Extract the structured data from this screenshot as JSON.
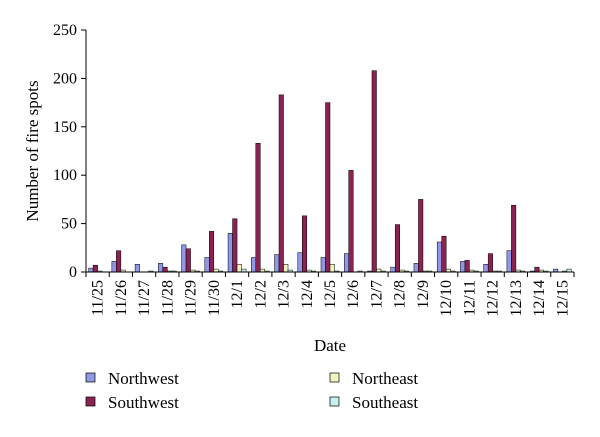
{
  "chart_data": {
    "type": "bar",
    "xlabel": "Date",
    "ylabel": "Number of fire spots",
    "ylim": [
      0,
      250
    ],
    "yticks": [
      "0",
      "50",
      "100",
      "150",
      "200",
      "250"
    ],
    "grid": false,
    "legend_position": "bottom",
    "categories": [
      "11/25",
      "11/26",
      "11/27",
      "11/28",
      "11/29",
      "11/30",
      "12/1",
      "12/2",
      "12/3",
      "12/4",
      "12/5",
      "12/6",
      "12/7",
      "12/8",
      "12/9",
      "12/10",
      "12/11",
      "12/12",
      "12/13",
      "12/14",
      "12/15"
    ],
    "series": [
      {
        "name": "Northwest",
        "color": "#8f97e6",
        "values": [
          4,
          11,
          8,
          9,
          28,
          15,
          40,
          15,
          18,
          20,
          15,
          19,
          1,
          5,
          9,
          31,
          11,
          8,
          22,
          1,
          3
        ]
      },
      {
        "name": "Southwest",
        "color": "#8b2252",
        "values": [
          7,
          22,
          0,
          5,
          24,
          42,
          55,
          133,
          183,
          58,
          175,
          105,
          208,
          49,
          75,
          37,
          12,
          19,
          69,
          5,
          0
        ]
      },
      {
        "name": "Northeast",
        "color": "#f2f2c0",
        "values": [
          1,
          2,
          0,
          1,
          2,
          3,
          8,
          3,
          8,
          2,
          8,
          0,
          3,
          2,
          1,
          3,
          2,
          1,
          2,
          2,
          1
        ]
      },
      {
        "name": "Southeast",
        "color": "#c9f1f1",
        "values": [
          0,
          0,
          1,
          1,
          1,
          1,
          3,
          1,
          2,
          1,
          1,
          1,
          1,
          1,
          1,
          1,
          1,
          1,
          1,
          1,
          3
        ]
      }
    ]
  }
}
